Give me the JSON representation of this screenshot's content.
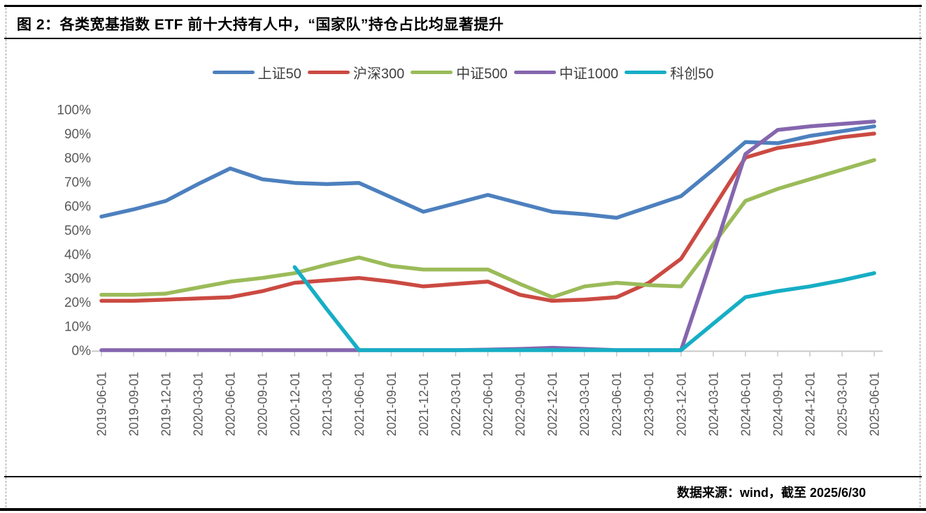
{
  "figure": {
    "title": "图 2：各类宽基指数 ETF 前十大持有人中，“国家队”持仓占比均显著提升",
    "source_note": "数据来源：wind，截至 2025/6/30"
  },
  "chart_data": {
    "type": "line",
    "title": "各类宽基指数ETF前十大持有人中国家队持仓占比",
    "legend_position": "top",
    "grid": false,
    "ylim": [
      0,
      100
    ],
    "ytick_step": 10,
    "ytick_labels": [
      "0%",
      "10%",
      "20%",
      "30%",
      "40%",
      "50%",
      "60%",
      "70%",
      "80%",
      "90%",
      "100%"
    ],
    "categories": [
      "2019-06-01",
      "2019-09-01",
      "2019-12-01",
      "2020-03-01",
      "2020-06-01",
      "2020-09-01",
      "2020-12-01",
      "2021-03-01",
      "2021-06-01",
      "2021-09-01",
      "2021-12-01",
      "2022-03-01",
      "2022-06-01",
      "2022-09-01",
      "2022-12-01",
      "2023-03-01",
      "2023-06-01",
      "2023-09-01",
      "2023-12-01",
      "2024-03-01",
      "2024-06-01",
      "2024-09-01",
      "2024-12-01",
      "2025-03-01",
      "2025-06-01"
    ],
    "series": [
      {
        "name": "上证50",
        "color": "#4D80BE",
        "values": [
          55.5,
          58.5,
          62,
          69,
          75.5,
          71,
          69.5,
          69,
          69.5,
          63.5,
          57.5,
          61,
          64.5,
          61,
          57.5,
          56.5,
          55,
          59.5,
          64,
          75,
          86.5,
          86,
          89,
          91,
          93
        ]
      },
      {
        "name": "沪深300",
        "color": "#CB4A42",
        "values": [
          20.5,
          20.5,
          21,
          21.5,
          22,
          24.5,
          28,
          29,
          30,
          28.5,
          26.5,
          27.5,
          28.5,
          23,
          20.5,
          21,
          22,
          28,
          38,
          59,
          80,
          84,
          86,
          88.5,
          90
        ]
      },
      {
        "name": "中证500",
        "color": "#9BBB59",
        "values": [
          23,
          23,
          23.5,
          26,
          28.5,
          30,
          32,
          35.5,
          38.5,
          35,
          33.5,
          33.5,
          33.5,
          27.5,
          22,
          26.5,
          28,
          27,
          26.5,
          44,
          62,
          67,
          71,
          75,
          79
        ]
      },
      {
        "name": "中证1000",
        "color": "#8566AE",
        "values": [
          0,
          0,
          0,
          0,
          0,
          0,
          0,
          0,
          0,
          0,
          0,
          0,
          0.2,
          0.5,
          1,
          0.5,
          0,
          0,
          0,
          40,
          81.5,
          91.5,
          93,
          94,
          95
        ]
      },
      {
        "name": "科创50",
        "color": "#16AEC5",
        "values": [
          null,
          null,
          null,
          null,
          null,
          null,
          34.5,
          17,
          0,
          0,
          0,
          0,
          0,
          0,
          0,
          0,
          0,
          0,
          0,
          11,
          22,
          24.5,
          26.5,
          29,
          32
        ]
      }
    ],
    "axis_color": "#c8c8c8",
    "tick_label_color": "#595959"
  }
}
